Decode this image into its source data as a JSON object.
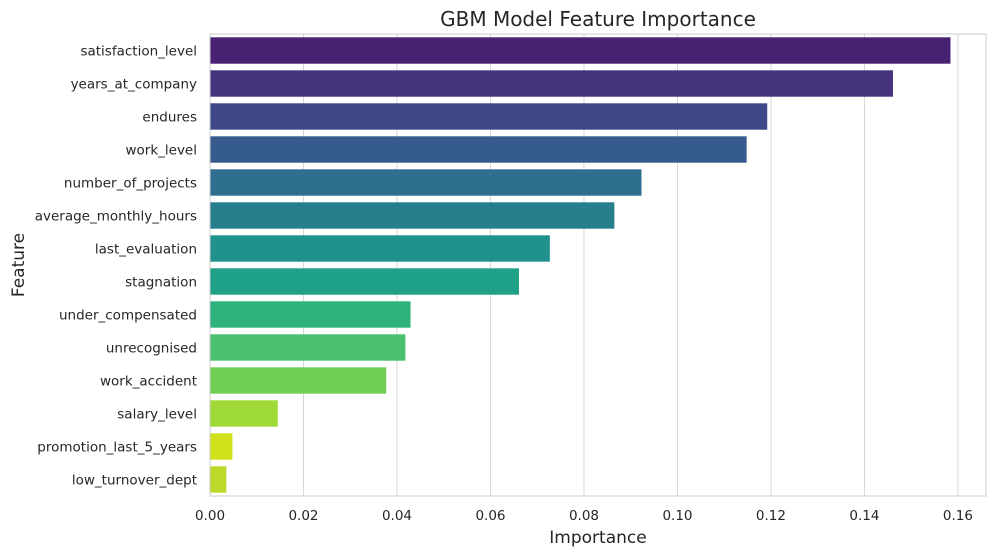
{
  "chart_data": {
    "type": "bar",
    "orientation": "horizontal",
    "title": "GBM Model Feature Importance",
    "xlabel": "Importance",
    "ylabel": "Feature",
    "xlim": [
      0,
      0.166
    ],
    "xticks": [
      0.0,
      0.02,
      0.04,
      0.06,
      0.08,
      0.1,
      0.12,
      0.14,
      0.16
    ],
    "xtick_labels": [
      "0.00",
      "0.02",
      "0.04",
      "0.06",
      "0.08",
      "0.10",
      "0.12",
      "0.14",
      "0.16"
    ],
    "grid": "vertical",
    "categories": [
      "satisfaction_level",
      "years_at_company",
      "endures",
      "work_level",
      "number_of_projects",
      "average_monthly_hours",
      "last_evaluation",
      "stagnation",
      "under_compensated",
      "unrecognised",
      "work_accident",
      "salary_level",
      "promotion_last_5_years",
      "low_turnover_dept"
    ],
    "values": [
      0.1584,
      0.1461,
      0.1192,
      0.1148,
      0.0923,
      0.0865,
      0.0727,
      0.0661,
      0.0429,
      0.0418,
      0.0377,
      0.0145,
      0.0048,
      0.0035
    ],
    "colors": [
      "#482173",
      "#46337e",
      "#3f4889",
      "#365c8d",
      "#2e6e8e",
      "#277f8e",
      "#21918c",
      "#1fa187",
      "#2db27d",
      "#4ac16d",
      "#71cf57",
      "#a0da39",
      "#d0e11c",
      "#bcd92a"
    ]
  }
}
